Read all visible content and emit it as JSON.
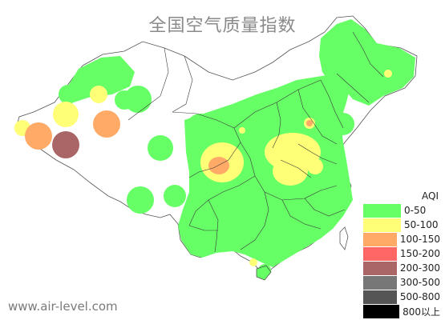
{
  "title": "全国空气质量指数",
  "watermark": "www.air-level.com",
  "legend": {
    "title": "AQI",
    "items": [
      {
        "label": "0-50",
        "color": "#66ff66"
      },
      {
        "label": "50-100",
        "color": "#ffff77"
      },
      {
        "label": "100-150",
        "color": "#ffaa66"
      },
      {
        "label": "150-200",
        "color": "#ff6666"
      },
      {
        "label": "200-300",
        "color": "#aa6666"
      },
      {
        "label": "300-500",
        "color": "#777777"
      },
      {
        "label": "500-800",
        "color": "#555555"
      },
      {
        "label": "800以上",
        "color": "#000000"
      }
    ]
  }
}
